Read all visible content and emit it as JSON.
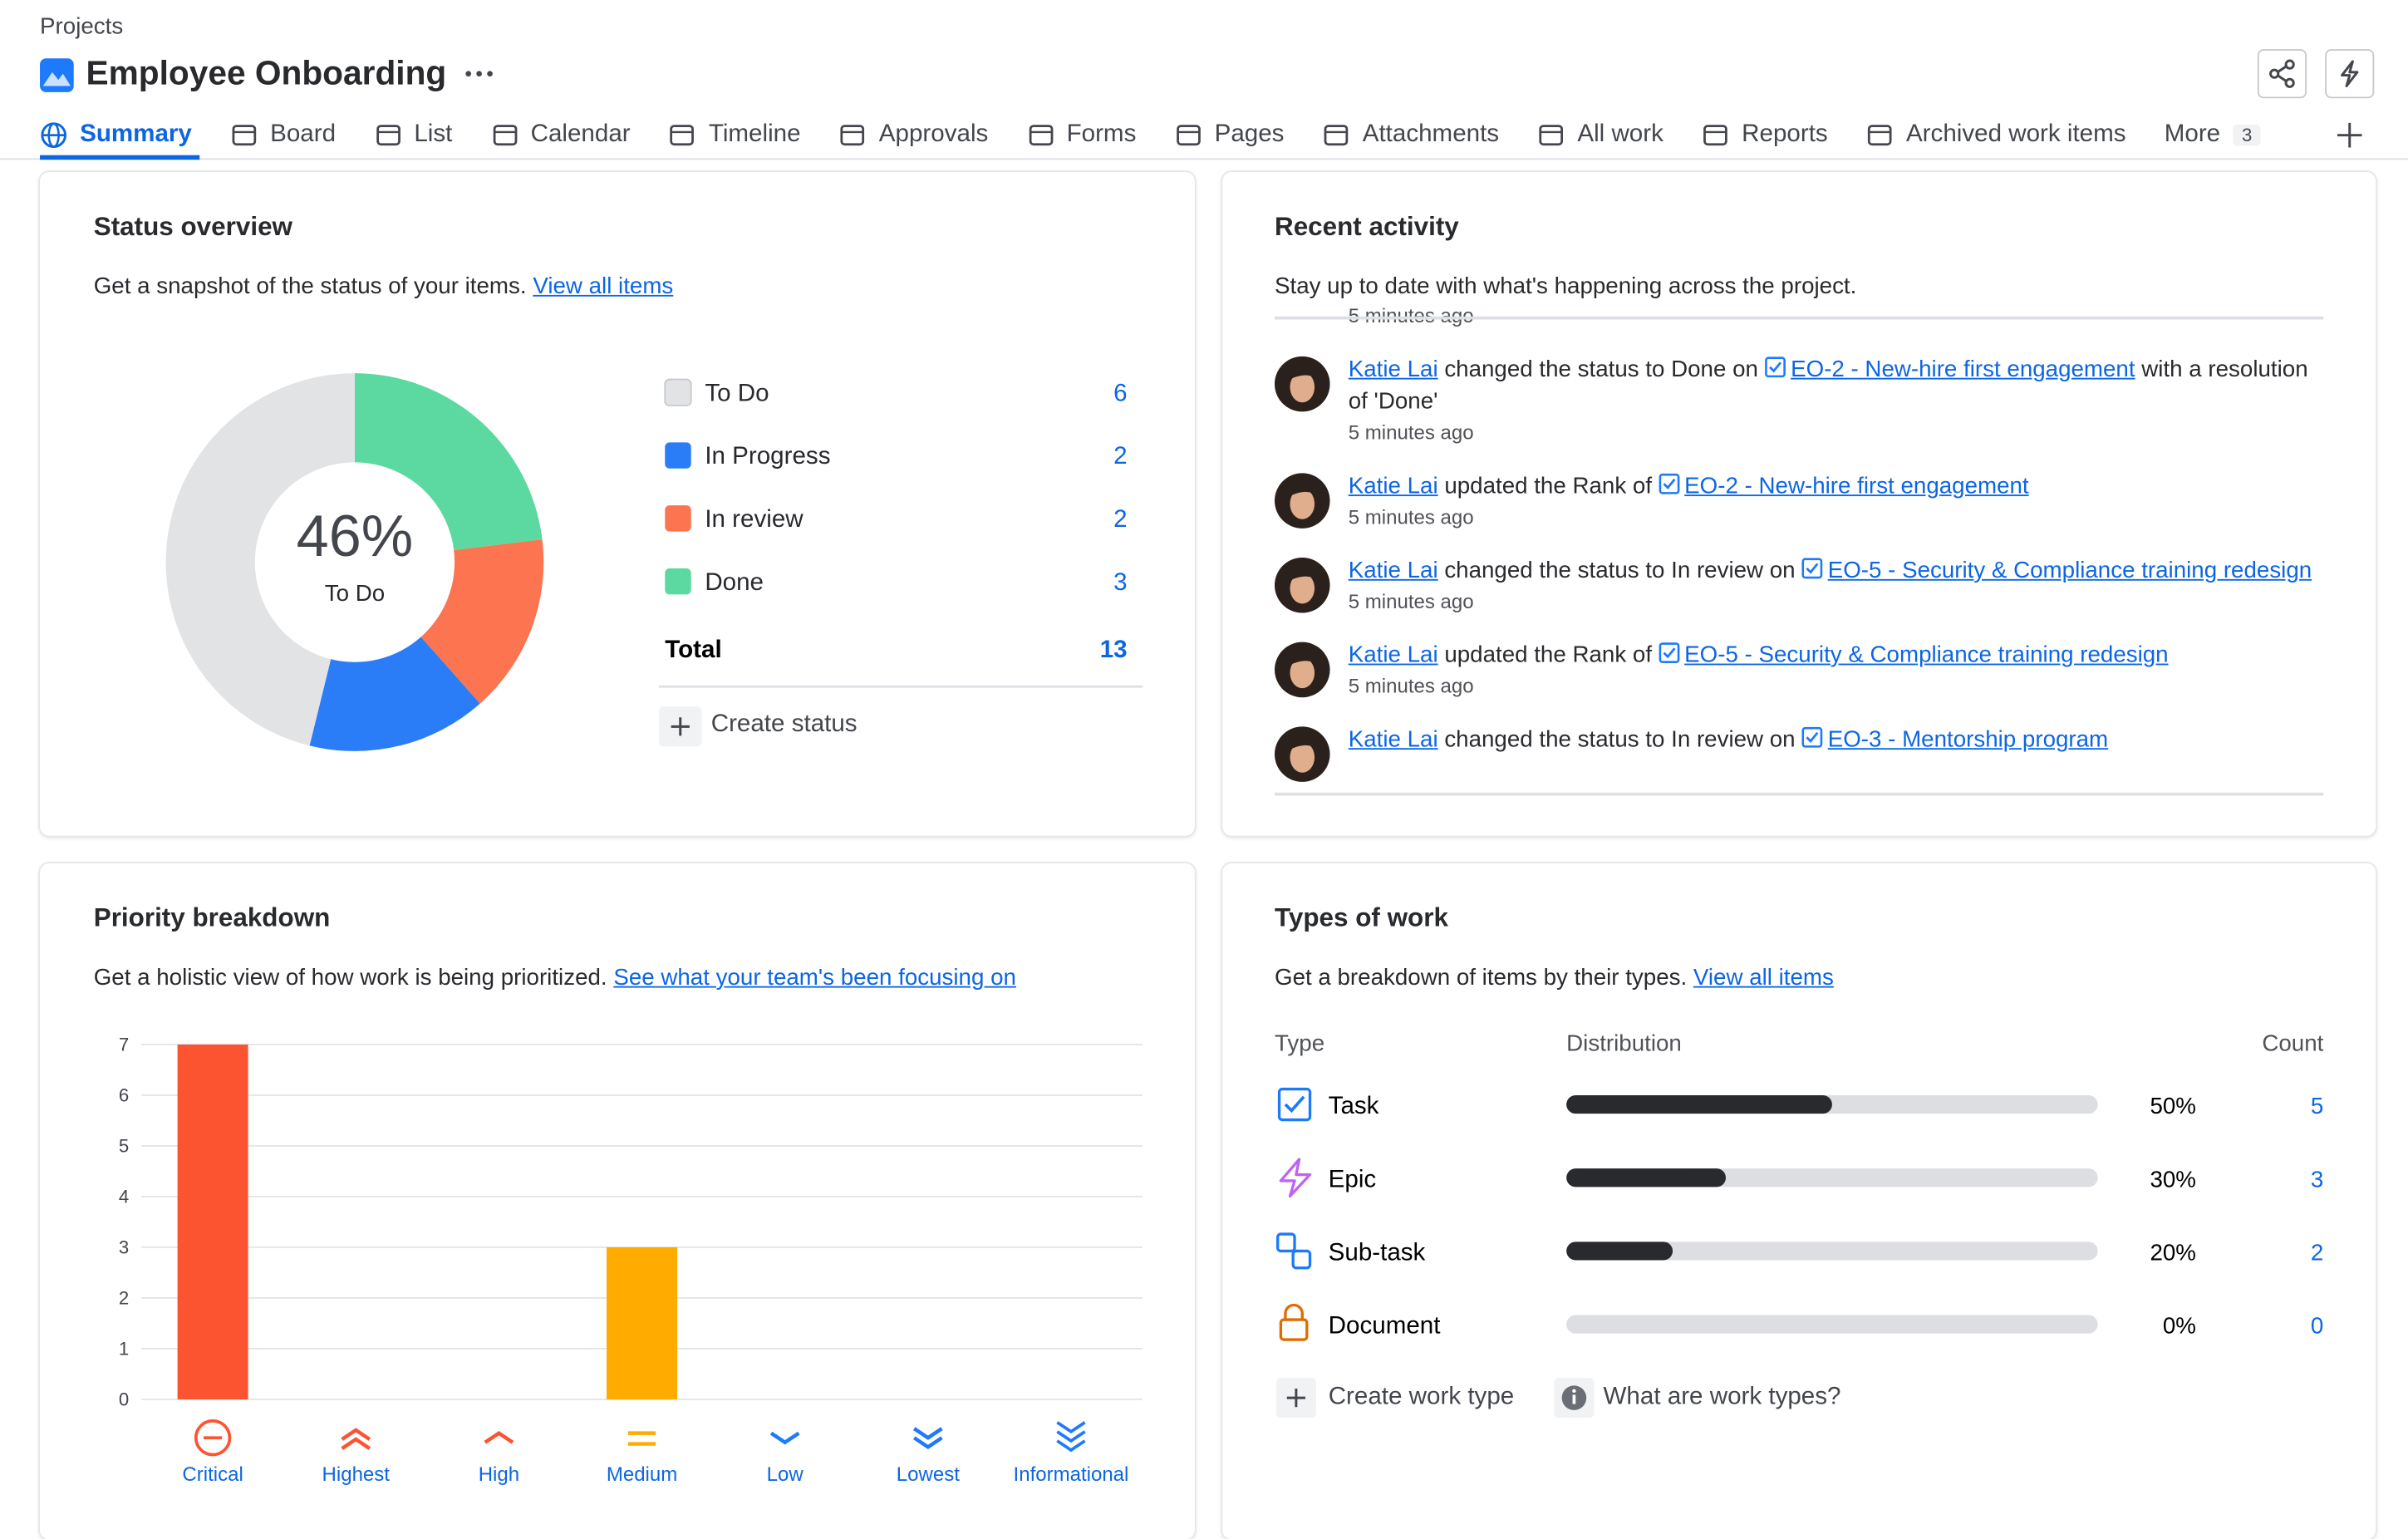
{
  "breadcrumb": "Projects",
  "title": "Employee Onboarding",
  "tabs": [
    "Summary",
    "Board",
    "List",
    "Calendar",
    "Timeline",
    "Approvals",
    "Forms",
    "Pages",
    "Attachments",
    "All work",
    "Reports",
    "Archived work items",
    "More"
  ],
  "more_badge": 3,
  "status_overview": {
    "title": "Status overview",
    "description": "Get a snapshot of the status of your items.",
    "link": "View all items",
    "create_status": "Create status",
    "chart_data": {
      "type": "donut",
      "categories": [
        "To Do",
        "In Progress",
        "In review",
        "Done"
      ],
      "values": [
        6,
        2,
        2,
        3
      ],
      "colors": [
        "#e2e3e5",
        "#2a7df7",
        "#fc7450",
        "#5cd9a1"
      ],
      "center_value": "46%",
      "center_label": "To Do",
      "total_label": "Total",
      "total": 13
    }
  },
  "recent_activity": {
    "title": "Recent activity",
    "description": "Stay up to date with what's happening across the project.",
    "items": [
      {
        "time": "5 minutes ago"
      },
      {
        "user": "Katie Lai",
        "action": "changed the status to Done on",
        "link": "EO-2 - New-hire first engagement",
        "suffix": "with a resolution of 'Done'",
        "time": "5 minutes ago"
      },
      {
        "user": "Katie Lai",
        "action": "updated the Rank of",
        "link": "EO-2 - New-hire first engagement",
        "time": "5 minutes ago"
      },
      {
        "user": "Katie Lai",
        "action": "changed the status to In review on",
        "link": "EO-5 - Security & Compliance training redesign",
        "time": "5 minutes ago"
      },
      {
        "user": "Katie Lai",
        "action": "updated the Rank of",
        "link": "EO-5 - Security & Compliance training redesign",
        "time": "5 minutes ago"
      },
      {
        "user": "Katie Lai",
        "action": "changed the status to In review on",
        "link": "EO-3 - Mentorship program"
      }
    ]
  },
  "priority_breakdown": {
    "title": "Priority breakdown",
    "description": "Get a holistic view of how work is being prioritized.",
    "link": "See what your team's been focusing on",
    "chart_data": {
      "type": "bar",
      "categories": [
        "Critical",
        "Highest",
        "High",
        "Medium",
        "Low",
        "Lowest",
        "Informational"
      ],
      "values": [
        7,
        0,
        0,
        3,
        0,
        0,
        0
      ],
      "colors": [
        "#fc5430",
        "#fc5430",
        "#fc5430",
        "#ffab00",
        "#1d7afc",
        "#1d7afc",
        "#1d7afc"
      ],
      "ylim": [
        0,
        7
      ],
      "yticks": [
        0,
        1,
        2,
        3,
        4,
        5,
        6,
        7
      ],
      "grid": true
    }
  },
  "types_of_work": {
    "title": "Types of work",
    "description": "Get a breakdown of items by their types.",
    "link": "View all items",
    "columns": [
      "Type",
      "Distribution",
      "Count"
    ],
    "rows": [
      {
        "type": "Task",
        "percent": 50,
        "percent_label": "50%",
        "count": 5
      },
      {
        "type": "Epic",
        "percent": 30,
        "percent_label": "30%",
        "count": 3
      },
      {
        "type": "Sub-task",
        "percent": 20,
        "percent_label": "20%",
        "count": 2
      },
      {
        "type": "Document",
        "percent": 0,
        "percent_label": "0%",
        "count": 0
      }
    ],
    "actions": [
      "Create work type",
      "What are work types?"
    ]
  }
}
